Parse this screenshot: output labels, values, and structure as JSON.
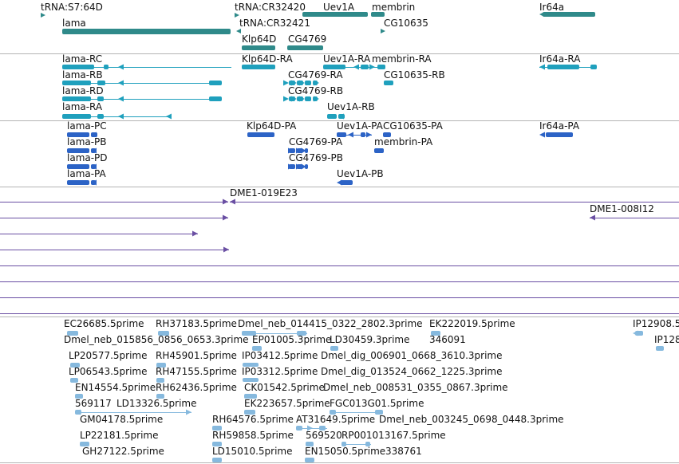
{
  "colors": {
    "gene": "#2f8a8a",
    "rna": "#1fa0bd",
    "protein": "#2c63c6",
    "clone": "#6a4fa3",
    "est": "#86b9de",
    "separator": "#b4b4b4"
  },
  "tracks": {
    "genes": [
      "tRNA:S7:64D",
      "tRNA:CR32420",
      "Uev1A",
      "membrin",
      "Ir64a",
      "lama",
      "tRNA:CR32421",
      "CG10635",
      "Klp64D",
      "CG4769"
    ],
    "transcripts": [
      "lama-RC",
      "Klp64D-RA",
      "Uev1A-RA",
      "membrin-RA",
      "Ir64a-RA",
      "lama-RB",
      "CG4769-RA",
      "CG10635-RB",
      "lama-RD",
      "CG4769-RB",
      "lama-RA",
      "Uev1A-RB"
    ],
    "proteins": [
      "lama-PC",
      "Klp64D-PA",
      "Uev1A-PA",
      "CG10635-PA",
      "Ir64a-PA",
      "lama-PB",
      "CG4769-PA",
      "membrin-PA",
      "lama-PD",
      "CG4769-PB",
      "lama-PA",
      "Uev1A-PB"
    ],
    "clones": [
      "DME1-019E23",
      "DME1-008I12"
    ],
    "ests": [
      "EC26685.5prime",
      "RH37183.5prime",
      "Dmel_neb_014415_0322_2802.3prime",
      "EK222019.5prime",
      "IP12908.5",
      "Dmel_neb_015856_0856_0653.3prime",
      "EP01005.3prime",
      "LD30459.3prime",
      "346091",
      "IP128",
      "LP20577.5prime",
      "RH45901.5prime",
      "IP03412.5prime",
      "Dmel_dig_006901_0668_3610.3prime",
      "LP06543.5prime",
      "RH47155.5prime",
      "IP03312.5prime",
      "Dmel_dig_013524_0662_1225.3prime",
      "EN14554.5prime",
      "RH62436.5prime",
      "CK01542.5prime",
      "Dmel_neb_008531_0355_0867.3prime",
      "569117",
      "LD13326.5prime",
      "EK223657.5prime",
      "FGC013G01.5prime",
      "GM04178.5prime",
      "RH64576.5prime",
      "AT31649.5prime",
      "Dmel_neb_003245_0698_0448.3prime",
      "LP22181.5prime",
      "RH59858.5prime",
      "569520",
      "RP001013167.5prime",
      "GH27122.5prime",
      "LD15010.5prime",
      "EN15050.5prime",
      "338761"
    ]
  }
}
